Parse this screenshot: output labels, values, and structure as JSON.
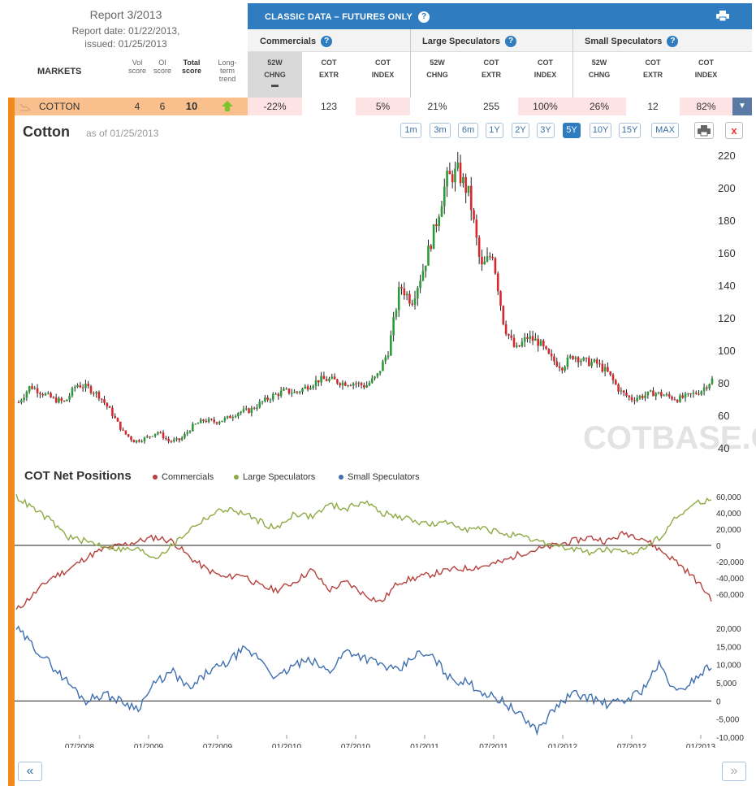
{
  "report": {
    "title": "Report 3/2013",
    "date_line": "Report date: 01/22/2013,",
    "issued_line": "issued: 01/25/2013"
  },
  "table_header": {
    "markets": "MARKETS",
    "vol_score": [
      "Vol",
      "score"
    ],
    "oi_score": [
      "OI",
      "score"
    ],
    "total_score": [
      "Total",
      "score"
    ],
    "long_term_trend": [
      "Long-",
      "term",
      "trend"
    ]
  },
  "classic_title": "CLASSIC DATA – FUTURES ONLY",
  "groups": [
    {
      "label": "Commercials",
      "cols": [
        [
          "52W",
          "CHNG"
        ],
        [
          "COT",
          "EXTR"
        ],
        [
          "COT",
          "INDEX"
        ]
      ]
    },
    {
      "label": "Large Speculators",
      "cols": [
        [
          "52W",
          "CHNG"
        ],
        [
          "COT",
          "EXTR"
        ],
        [
          "COT",
          "INDEX"
        ]
      ]
    },
    {
      "label": "Small Speculators",
      "cols": [
        [
          "52W",
          "CHNG"
        ],
        [
          "COT",
          "EXTR"
        ],
        [
          "COT",
          "INDEX"
        ]
      ]
    }
  ],
  "market_row": {
    "name": "COTTON",
    "vol": "4",
    "oi": "6",
    "total": "10",
    "values": [
      "-22%",
      "123",
      "5%",
      "21%",
      "255",
      "100%",
      "26%",
      "12",
      "82%"
    ],
    "pink": [
      true,
      false,
      true,
      false,
      false,
      true,
      true,
      false,
      true
    ]
  },
  "chart": {
    "title": "Cotton",
    "as_of": "as of 01/25/2013",
    "ranges": [
      "1m",
      "3m",
      "6m",
      "1Y",
      "2Y",
      "3Y",
      "5Y",
      "10Y",
      "15Y",
      "MAX"
    ],
    "active_range": "5Y",
    "close_label": "x",
    "watermark": "COTBASE.COM",
    "cot_title": "COT Net Positions",
    "legend": [
      {
        "label": "Commercials",
        "color": "#b5403d"
      },
      {
        "label": "Large Speculators",
        "color": "#8faa44"
      },
      {
        "label": "Small Speculators",
        "color": "#3f6fb0"
      }
    ],
    "nav_prev": "«",
    "nav_next": "»"
  },
  "chart_data": [
    {
      "type": "candlestick",
      "title": "Cotton",
      "ylim": [
        40,
        220
      ],
      "yticks": [
        40,
        60,
        80,
        100,
        120,
        140,
        160,
        180,
        200,
        220
      ],
      "x_ticks": [
        "07/2008",
        "01/2009",
        "07/2009",
        "01/2010",
        "07/2010",
        "01/2011",
        "07/2011",
        "01/2012",
        "07/2012",
        "01/2013"
      ],
      "x_range": [
        "01/2008",
        "01/2013"
      ],
      "price_path": [
        [
          "2008-01",
          68
        ],
        [
          "2008-02",
          78
        ],
        [
          "2008-03",
          74
        ],
        [
          "2008-04",
          70
        ],
        [
          "2008-05",
          68
        ],
        [
          "2008-06",
          79
        ],
        [
          "2008-07",
          77
        ],
        [
          "2008-08",
          72
        ],
        [
          "2008-09",
          62
        ],
        [
          "2008-10",
          50
        ],
        [
          "2008-11",
          44
        ],
        [
          "2008-12",
          46
        ],
        [
          "2009-01",
          50
        ],
        [
          "2009-02",
          44
        ],
        [
          "2009-03",
          45
        ],
        [
          "2009-04",
          53
        ],
        [
          "2009-05",
          57
        ],
        [
          "2009-06",
          56
        ],
        [
          "2009-07",
          58
        ],
        [
          "2009-08",
          62
        ],
        [
          "2009-09",
          63
        ],
        [
          "2009-10",
          68
        ],
        [
          "2009-11",
          72
        ],
        [
          "2009-12",
          75
        ],
        [
          "2010-01",
          74
        ],
        [
          "2010-02",
          78
        ],
        [
          "2010-03",
          82
        ],
        [
          "2010-04",
          82
        ],
        [
          "2010-05",
          80
        ],
        [
          "2010-06",
          80
        ],
        [
          "2010-07",
          78
        ],
        [
          "2010-08",
          84
        ],
        [
          "2010-09",
          100
        ],
        [
          "2010-10",
          140
        ],
        [
          "2010-11",
          130
        ],
        [
          "2010-12",
          150
        ],
        [
          "2011-01",
          175
        ],
        [
          "2011-02",
          205
        ],
        [
          "2011-03",
          210
        ],
        [
          "2011-04",
          195
        ],
        [
          "2011-05",
          150
        ],
        [
          "2011-06",
          160
        ],
        [
          "2011-07",
          115
        ],
        [
          "2011-08",
          100
        ],
        [
          "2011-09",
          108
        ],
        [
          "2011-10",
          105
        ],
        [
          "2011-11",
          95
        ],
        [
          "2011-12",
          90
        ],
        [
          "2012-01",
          97
        ],
        [
          "2012-02",
          93
        ],
        [
          "2012-03",
          92
        ],
        [
          "2012-04",
          86
        ],
        [
          "2012-05",
          75
        ],
        [
          "2012-06",
          70
        ],
        [
          "2012-07",
          72
        ],
        [
          "2012-08",
          74
        ],
        [
          "2012-09",
          72
        ],
        [
          "2012-10",
          70
        ],
        [
          "2012-11",
          72
        ],
        [
          "2012-12",
          75
        ],
        [
          "2013-01",
          82
        ]
      ]
    },
    {
      "type": "line",
      "title": "COT Net Positions",
      "ylim": [
        -80000,
        60000
      ],
      "yticks": [
        -60000,
        -40000,
        -20000,
        0,
        20000,
        40000,
        60000
      ],
      "series": [
        {
          "name": "Commercials",
          "values": [
            -80000,
            -60000,
            -40000,
            -30000,
            -15000,
            -5000,
            0,
            5000,
            10000,
            5000,
            -15000,
            -30000,
            -40000,
            -35000,
            -50000,
            -55000,
            -45000,
            -30000,
            -55000,
            -45000,
            -60000,
            -70000,
            -45000,
            -40000,
            -35000,
            -30000,
            -28000,
            -25000,
            -20000,
            -10000,
            -5000,
            0,
            5000,
            10000,
            5000,
            15000,
            10000,
            -5000,
            -20000,
            -40000,
            -65000
          ]
        },
        {
          "name": "Large Speculators",
          "values": [
            60000,
            45000,
            30000,
            10000,
            5000,
            0,
            -5000,
            -5000,
            -15000,
            0,
            20000,
            35000,
            45000,
            40000,
            30000,
            20000,
            40000,
            35000,
            50000,
            45000,
            55000,
            40000,
            35000,
            30000,
            25000,
            28000,
            20000,
            20000,
            15000,
            10000,
            5000,
            0,
            -5000,
            -8000,
            -5000,
            -10000,
            -5000,
            10000,
            35000,
            50000,
            58000
          ]
        }
      ]
    },
    {
      "type": "line",
      "ylim": [
        -10000,
        20000
      ],
      "yticks": [
        -10000,
        -5000,
        0,
        5000,
        10000,
        15000,
        20000
      ],
      "series": [
        {
          "name": "Small Speculators",
          "values": [
            20000,
            15000,
            10000,
            5000,
            0,
            2000,
            0,
            -2000,
            5000,
            8000,
            3000,
            8000,
            10000,
            14000,
            12000,
            6000,
            10000,
            11000,
            8000,
            14000,
            12000,
            10000,
            8000,
            13000,
            12000,
            6000,
            5000,
            2000,
            0,
            -4000,
            -8000,
            -2000,
            2000,
            1000,
            -1000,
            0,
            3000,
            10000,
            2000,
            6000,
            10000
          ]
        }
      ]
    }
  ]
}
